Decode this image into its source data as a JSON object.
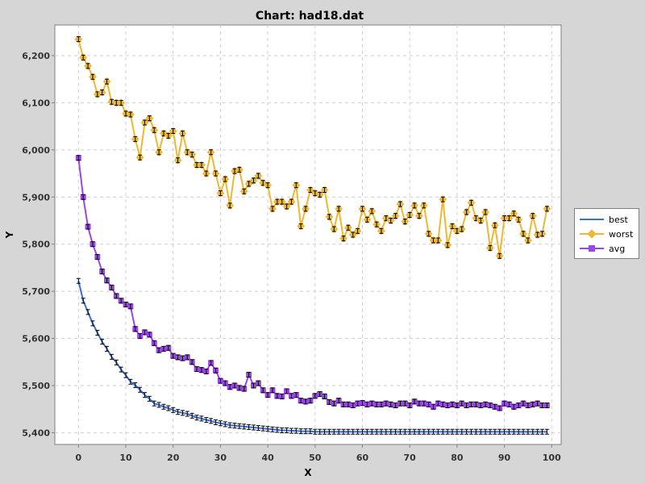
{
  "chart_data": {
    "type": "line",
    "title": "Chart: had18.dat",
    "xlabel": "X",
    "ylabel": "Y",
    "xlim": [
      -5,
      102
    ],
    "ylim": [
      5375,
      6265
    ],
    "x_ticks": [
      0,
      10,
      20,
      30,
      40,
      50,
      60,
      70,
      80,
      90,
      100
    ],
    "y_ticks": [
      5400,
      5500,
      5600,
      5700,
      5800,
      5900,
      6000,
      6100,
      6200
    ],
    "y_tick_labels": [
      "5,400",
      "5,500",
      "5,600",
      "5,700",
      "5,800",
      "5,900",
      "6,000",
      "6,100",
      "6,200"
    ],
    "grid": true,
    "legend_position": "right",
    "series": [
      {
        "name": "best",
        "color": "#3a6fd6",
        "marker": "none",
        "values": [
          5722,
          5680,
          5656,
          5632,
          5612,
          5593,
          5578,
          5561,
          5549,
          5534,
          5522,
          5508,
          5501,
          5491,
          5480,
          5472,
          5462,
          5459,
          5455,
          5452,
          5448,
          5444,
          5442,
          5440,
          5436,
          5432,
          5430,
          5427,
          5425,
          5422,
          5420,
          5418,
          5416,
          5415,
          5414,
          5413,
          5412,
          5411,
          5410,
          5409,
          5408,
          5407,
          5406,
          5405,
          5405,
          5404,
          5404,
          5403,
          5403,
          5403,
          5402,
          5402,
          5402,
          5402,
          5402,
          5402,
          5402,
          5402,
          5402,
          5402,
          5402,
          5402,
          5402,
          5402,
          5402,
          5402,
          5402,
          5402,
          5402,
          5402,
          5402,
          5402,
          5402,
          5402,
          5402,
          5402,
          5402,
          5402,
          5402,
          5402,
          5402,
          5402,
          5402,
          5402,
          5402,
          5402,
          5402,
          5402,
          5402,
          5402,
          5402,
          5402,
          5402,
          5402,
          5402,
          5402,
          5402,
          5402,
          5402,
          5402
        ]
      },
      {
        "name": "worst",
        "color": "#f0b732",
        "marker": "diamond",
        "values": [
          6235,
          6196,
          6178,
          6155,
          6118,
          6122,
          6145,
          6102,
          6100,
          6100,
          6077,
          6075,
          6023,
          5984,
          6058,
          6067,
          6042,
          5995,
          6035,
          6030,
          6040,
          5978,
          6035,
          5995,
          5990,
          5968,
          5968,
          5950,
          5995,
          5950,
          5908,
          5938,
          5882,
          5955,
          5958,
          5912,
          5928,
          5935,
          5945,
          5930,
          5925,
          5875,
          5890,
          5890,
          5880,
          5890,
          5925,
          5838,
          5875,
          5915,
          5908,
          5905,
          5915,
          5858,
          5832,
          5875,
          5812,
          5835,
          5820,
          5828,
          5875,
          5852,
          5870,
          5842,
          5828,
          5855,
          5850,
          5860,
          5885,
          5848,
          5862,
          5882,
          5860,
          5882,
          5822,
          5808,
          5808,
          5895,
          5798,
          5838,
          5828,
          5832,
          5868,
          5888,
          5855,
          5850,
          5868,
          5792,
          5840,
          5775,
          5855,
          5855,
          5865,
          5852,
          5822,
          5808,
          5860,
          5820,
          5822,
          5875
        ]
      },
      {
        "name": "avg",
        "color": "#9a47e8",
        "marker": "square",
        "values": [
          5983,
          5900,
          5837,
          5800,
          5773,
          5742,
          5723,
          5708,
          5690,
          5680,
          5672,
          5668,
          5620,
          5605,
          5613,
          5608,
          5590,
          5575,
          5578,
          5580,
          5563,
          5560,
          5558,
          5560,
          5550,
          5535,
          5533,
          5530,
          5548,
          5532,
          5510,
          5505,
          5497,
          5500,
          5495,
          5493,
          5523,
          5500,
          5505,
          5490,
          5480,
          5490,
          5478,
          5477,
          5488,
          5478,
          5480,
          5468,
          5466,
          5468,
          5478,
          5482,
          5477,
          5465,
          5462,
          5468,
          5460,
          5460,
          5458,
          5462,
          5463,
          5460,
          5462,
          5460,
          5460,
          5462,
          5460,
          5458,
          5462,
          5462,
          5458,
          5466,
          5462,
          5462,
          5460,
          5455,
          5462,
          5460,
          5458,
          5460,
          5458,
          5462,
          5458,
          5460,
          5460,
          5458,
          5460,
          5458,
          5455,
          5452,
          5462,
          5460,
          5455,
          5458,
          5462,
          5458,
          5460,
          5462,
          5458,
          5458
        ]
      }
    ]
  }
}
